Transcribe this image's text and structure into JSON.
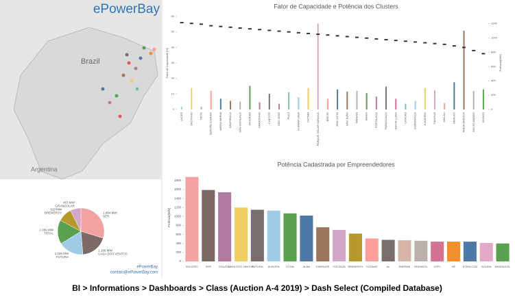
{
  "logo": "ePowerBay",
  "map": {
    "labels": [
      "Brazil",
      "Argentina"
    ]
  },
  "pie_footer": [
    "ePowerBay",
    "contato@ePowerBay.com"
  ],
  "footer": "BI > Informations > Dashboards > Class (Auction A-4 2019) > Dash Select (Compiled Database)",
  "chart_data": [
    {
      "type": "combo",
      "title": "Fator de Capacidade e Potência dos Clusters",
      "y_label": "Fator de Capacidade [%]",
      "y2_label": "Potência[MW]",
      "categories": [
        "LAGES",
        "SALTINHO",
        "TIETE",
        "SERTÃO E BAHIA",
        "MEIRA MERIM",
        "ARAPIRACA",
        "SÃO GONÇALO",
        "JANDAIRA",
        "PARAZINHO",
        "CAETITÉ",
        "SÃO JOSÉ",
        "PIAUÍ",
        "GUARAPUAVA",
        "FÁTIMA",
        "PARQUE SOLAR SARAIVA",
        "BREJO",
        "BOA VISTA",
        "SÃO JOÃO",
        "PARANÁ",
        "BAHIA",
        "FORTALEZA",
        "PARAGUAÇU",
        "SANTA LUZIA",
        "CANOAS",
        "ESPERANÇA",
        "JUAZEIRO",
        "TIANGUÁ",
        "MACAU",
        "ARACATI",
        "AREIA BRANCA",
        "SANTO AMARO",
        "BÚZIOS"
      ],
      "series": [
        {
          "color": "#333333",
          "values": [
            56,
            55.5,
            55,
            54,
            53.5,
            53,
            52.5,
            52,
            51.5,
            51,
            50.5,
            50,
            49.5,
            49,
            48.5,
            48,
            47.5,
            47,
            46.5,
            46,
            45.5,
            45,
            44.5,
            44,
            43.5,
            43,
            42.5,
            42,
            41,
            40,
            38,
            36
          ]
        },
        {
          "axis": "y2",
          "values": [
            40,
            300,
            40,
            260,
            150,
            120,
            110,
            330,
            100,
            220,
            80,
            240,
            170,
            300,
            1200,
            150,
            280,
            250,
            260,
            230,
            180,
            320,
            150,
            80,
            120,
            300,
            270,
            90,
            380,
            1100,
            260,
            280
          ]
        }
      ],
      "palette": [
        "#a0cbe8",
        "#f1ce63",
        "#d4a6c8",
        "#ff9d9a",
        "#4e79a7",
        "#9c755f",
        "#bab0ac",
        "#59a14f",
        "#b07aa1",
        "#79706e",
        "#d37295",
        "#86bcb6"
      ],
      "ylim": [
        0,
        60
      ],
      "yticks": [
        0,
        10,
        20,
        30,
        40,
        50,
        60
      ],
      "y2lim": [
        0,
        1300
      ],
      "y2ticks": [
        0,
        200,
        400,
        600,
        800,
        1000,
        1200
      ]
    },
    {
      "type": "pie",
      "categories": [
        "SER",
        "CASA DOS VENTOS",
        "FUTURA",
        "TOTAL",
        "BRENERGY",
        "GRANDOLAR"
      ],
      "values": [
        1884,
        1196,
        1106,
        1059,
        619,
        467
      ],
      "value_labels": [
        "1.884 MW",
        "1.196 MW",
        "1.106 MW",
        "1.059 MW",
        "619 MW",
        "467 MW"
      ],
      "colors": [
        "#f4a1a1",
        "#7b6a66",
        "#a0cbe8",
        "#59a14f",
        "#b6992d",
        "#d4a6c8"
      ]
    },
    {
      "type": "bar",
      "title": "Potência Cadastrada por Empreendedores",
      "y_label": "Potência[MW]",
      "categories": [
        "SOLATEC",
        "SER",
        "SOLATIO",
        "CASA DOS VENTOS",
        "FUTURA",
        "AURORA",
        "TOTAL",
        "ALBA",
        "ENERLIFE",
        "VOLTALIA",
        "BRENERGY",
        "TOTAVAT",
        "AL",
        "ENERDE",
        "GRANDOL",
        "CPFL",
        "NF",
        "STEELCON",
        "SOLIDA",
        "BRASILEOL"
      ],
      "values": [
        1880,
        1590,
        1540,
        1200,
        1150,
        1130,
        1070,
        1020,
        760,
        700,
        620,
        510,
        480,
        470,
        460,
        440,
        440,
        440,
        410,
        400
      ],
      "colors": [
        "#f4a1a1",
        "#7b6a66",
        "#b07aa1",
        "#f1ce63",
        "#79706e",
        "#a0cbe8",
        "#59a14f",
        "#4e79a7",
        "#9c755f",
        "#d4a6c8",
        "#b6992d",
        "#ff9d9a",
        "#79706e",
        "#d7b5a6",
        "#bab0ac",
        "#d37295",
        "#f28e2b",
        "#4e79a7",
        "#e2a8c8",
        "#59a14f"
      ],
      "ylim": [
        0,
        1950
      ],
      "yticks": [
        0,
        200,
        400,
        600,
        800,
        1000,
        1200,
        1400,
        1600,
        1800
      ]
    }
  ]
}
